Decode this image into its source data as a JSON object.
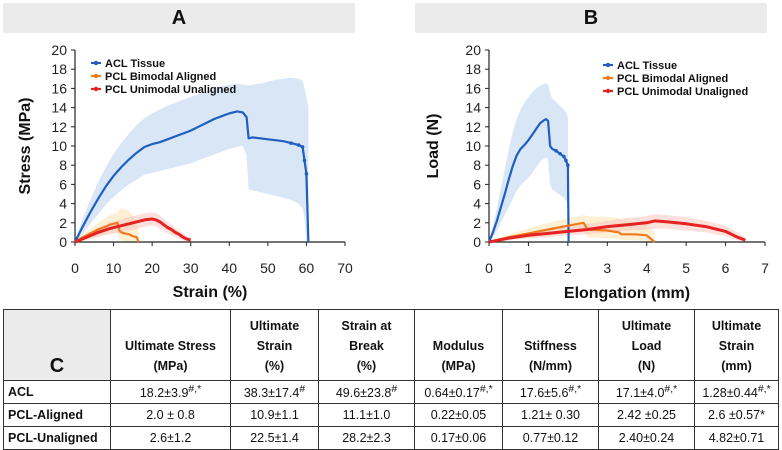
{
  "panels": {
    "a": "A",
    "b": "B",
    "c": "C"
  },
  "chart_data": [
    {
      "type": "line",
      "panel": "A",
      "xlabel": "Strain (%)",
      "ylabel": "Stress (MPa)",
      "xlim": [
        0,
        70
      ],
      "ylim": [
        0,
        20
      ],
      "xticks": [
        0,
        10,
        20,
        30,
        40,
        50,
        60,
        70
      ],
      "yticks": [
        0,
        2,
        4,
        6,
        8,
        10,
        12,
        14,
        16,
        18,
        20
      ],
      "legend": [
        "ACL Tissue",
        "PCL Bimodal Aligned",
        "PCL Unimodal Unaligned"
      ],
      "series": [
        {
          "name": "ACL Tissue",
          "color": "#1f5fbf",
          "band": "#b9d2ee",
          "x": [
            0,
            2,
            4,
            6,
            8,
            10,
            12,
            14,
            16,
            18,
            20,
            22,
            24,
            26,
            28,
            30,
            32,
            34,
            36,
            38,
            40,
            42,
            43.5,
            44.5,
            45,
            46,
            48,
            50,
            52,
            54,
            56,
            58,
            59,
            59.5,
            60,
            60.5
          ],
          "y": [
            0,
            1.6,
            3.1,
            4.5,
            5.8,
            6.9,
            7.8,
            8.6,
            9.3,
            9.9,
            10.2,
            10.4,
            10.7,
            11.0,
            11.3,
            11.6,
            12.0,
            12.4,
            12.8,
            13.1,
            13.4,
            13.6,
            13.5,
            13.0,
            10.8,
            10.9,
            10.8,
            10.7,
            10.6,
            10.5,
            10.3,
            10.1,
            9.9,
            8.5,
            7.1,
            0
          ],
          "upper": [
            0.3,
            2.4,
            4.4,
            6.2,
            7.8,
            9.2,
            10.3,
            11.3,
            12.2,
            12.9,
            13.4,
            13.8,
            14.2,
            14.5,
            14.8,
            15.1,
            15.4,
            15.7,
            16.0,
            16.2,
            16.4,
            16.5,
            16.4,
            16.3,
            16.3,
            16.4,
            16.5,
            16.7,
            16.9,
            17.0,
            17.1,
            17.0,
            16.8,
            16.0,
            15.0,
            14.0
          ],
          "lower": [
            0,
            0.8,
            1.9,
            2.9,
            3.9,
            4.7,
            5.4,
            6.0,
            6.5,
            7.0,
            7.2,
            7.4,
            7.6,
            7.8,
            8.0,
            8.2,
            8.5,
            8.8,
            9.1,
            9.4,
            9.7,
            9.9,
            10.0,
            9.0,
            5.5,
            5.4,
            5.2,
            5.0,
            4.8,
            4.6,
            4.4,
            4.0,
            3.5,
            2.5,
            0,
            0
          ]
        },
        {
          "name": "PCL Bimodal Aligned",
          "color": "#f07a1f",
          "band": "#fbe3b0",
          "x": [
            0,
            2,
            4,
            6,
            8,
            9,
            10,
            11,
            11.5,
            12,
            13,
            14,
            15,
            16,
            16.5
          ],
          "y": [
            0,
            0.5,
            0.9,
            1.3,
            1.6,
            1.8,
            1.9,
            2.0,
            1.2,
            1.0,
            0.9,
            0.8,
            0.6,
            0.5,
            0
          ],
          "upper": [
            0,
            0.8,
            1.4,
            2.0,
            2.5,
            2.8,
            3.0,
            3.1,
            3.3,
            3.5,
            3.4,
            3.2,
            2.8,
            2.0,
            1.0
          ],
          "lower": [
            0,
            0.2,
            0.4,
            0.6,
            0.8,
            0.9,
            0.9,
            1.0,
            0.3,
            0.2,
            0.1,
            0,
            0,
            0,
            0
          ]
        },
        {
          "name": "PCL Unimodal Unaligned",
          "color": "#e52323",
          "band": "#f7c6c0",
          "x": [
            0,
            3,
            6,
            9,
            12,
            15,
            18,
            20,
            21,
            22,
            23,
            24,
            25,
            26,
            27,
            28,
            29,
            30
          ],
          "y": [
            0,
            0.5,
            1.0,
            1.4,
            1.7,
            2.0,
            2.3,
            2.4,
            2.3,
            2.1,
            1.8,
            1.5,
            1.3,
            1.0,
            0.8,
            0.5,
            0.3,
            0.2
          ],
          "upper": [
            0,
            0.8,
            1.5,
            2.0,
            2.4,
            2.7,
            3.0,
            3.1,
            3.0,
            2.8,
            2.4,
            2.1,
            1.8,
            1.5,
            1.2,
            0.9,
            0.6,
            0.4
          ],
          "lower": [
            0,
            0.2,
            0.5,
            0.8,
            1.0,
            1.3,
            1.6,
            1.7,
            1.6,
            1.4,
            1.2,
            0.9,
            0.7,
            0.5,
            0.4,
            0.2,
            0.1,
            0
          ]
        }
      ]
    },
    {
      "type": "line",
      "panel": "B",
      "xlabel": "Elongation (mm)",
      "ylabel": "Load (N)",
      "xlim": [
        0,
        7
      ],
      "ylim": [
        0,
        20
      ],
      "xticks": [
        0,
        1,
        2,
        3,
        4,
        5,
        6,
        7
      ],
      "yticks": [
        0,
        2,
        4,
        6,
        8,
        10,
        12,
        14,
        16,
        18,
        20
      ],
      "legend": [
        "ACL Tissue",
        "PCL Bimodal Aligned",
        "PCL Unimodal Unaligned"
      ],
      "series": [
        {
          "name": "ACL Tissue",
          "color": "#1f5fbf",
          "band": "#b9d2ee",
          "x": [
            0,
            0.1,
            0.2,
            0.3,
            0.4,
            0.5,
            0.6,
            0.7,
            0.8,
            0.9,
            1.0,
            1.1,
            1.2,
            1.3,
            1.4,
            1.45,
            1.5,
            1.55,
            1.6,
            1.7,
            1.8,
            1.9,
            1.95,
            2.0,
            2.02
          ],
          "y": [
            0,
            1.0,
            2.2,
            3.6,
            5.0,
            6.5,
            7.9,
            9.0,
            9.7,
            10.1,
            10.6,
            11.2,
            11.8,
            12.4,
            12.7,
            12.8,
            12.6,
            10.0,
            9.7,
            9.5,
            9.2,
            8.9,
            8.5,
            8.0,
            0
          ],
          "upper": [
            0.3,
            1.6,
            3.5,
            5.6,
            7.6,
            9.6,
            11.4,
            12.8,
            13.8,
            14.5,
            15.1,
            15.6,
            16.0,
            16.3,
            16.5,
            16.5,
            16.4,
            15.5,
            15.0,
            14.6,
            14.2,
            13.8,
            13.5,
            13.0,
            0
          ],
          "lower": [
            0,
            0.5,
            1.2,
            2.0,
            2.8,
            3.6,
            4.5,
            5.3,
            5.9,
            6.3,
            6.7,
            7.2,
            7.8,
            8.4,
            8.7,
            8.8,
            8.6,
            6.0,
            5.5,
            5.2,
            4.9,
            4.6,
            4.3,
            4.0,
            0
          ]
        },
        {
          "name": "PCL Bimodal Aligned",
          "color": "#f07a1f",
          "band": "#fbe3b0",
          "x": [
            0,
            0.5,
            1.0,
            1.5,
            2.0,
            2.4,
            2.5,
            3.0,
            3.3,
            3.35,
            3.7,
            4.0,
            4.2
          ],
          "y": [
            0,
            0.5,
            0.9,
            1.3,
            1.7,
            2.0,
            1.3,
            1.2,
            1.0,
            0.8,
            0.8,
            0.7,
            0
          ],
          "upper": [
            0,
            0.8,
            1.4,
            2.0,
            2.5,
            2.8,
            2.7,
            2.6,
            2.5,
            2.3,
            2.1,
            1.8,
            1.0
          ],
          "lower": [
            0,
            0.2,
            0.4,
            0.6,
            0.9,
            1.1,
            0.5,
            0.4,
            0.3,
            0.2,
            0.2,
            0.1,
            0
          ]
        },
        {
          "name": "PCL Unimodal Unaligned",
          "color": "#e52323",
          "band": "#f7c6c0",
          "x": [
            0,
            0.5,
            1.0,
            1.5,
            2.0,
            2.5,
            3.0,
            3.5,
            4.0,
            4.2,
            4.5,
            5.0,
            5.5,
            6.0,
            6.3,
            6.5
          ],
          "y": [
            0,
            0.4,
            0.7,
            0.9,
            1.1,
            1.3,
            1.6,
            1.8,
            2.0,
            2.2,
            2.1,
            1.9,
            1.6,
            1.1,
            0.5,
            0.2
          ],
          "upper": [
            0,
            0.6,
            1.0,
            1.3,
            1.6,
            1.9,
            2.2,
            2.5,
            2.7,
            2.9,
            2.8,
            2.6,
            2.2,
            1.7,
            1.0,
            0.5
          ],
          "lower": [
            0,
            0.2,
            0.4,
            0.5,
            0.7,
            0.8,
            1.0,
            1.2,
            1.3,
            1.4,
            1.4,
            1.2,
            1.0,
            0.6,
            0.2,
            0
          ]
        }
      ]
    }
  ],
  "table": {
    "headers": [
      [
        "Ultimate Stress",
        "(MPa)"
      ],
      [
        "Ultimate",
        "Strain",
        "(%)"
      ],
      [
        "Strain at",
        "Break",
        "(%)"
      ],
      [
        "Modulus",
        "(MPa)"
      ],
      [
        "Stiffness",
        "(N/mm)"
      ],
      [
        "Ultimate",
        "Load",
        "(N)"
      ],
      [
        "Ultimate",
        "Strain",
        "(mm)"
      ]
    ],
    "rows": [
      {
        "name": "ACL",
        "cells": [
          {
            "v": "18.2±3.9",
            "s": "#,*"
          },
          {
            "v": "38.3±17.4",
            "s": "#"
          },
          {
            "v": "49.6±23.8",
            "s": "#"
          },
          {
            "v": "0.64±0.17",
            "s": "#,*"
          },
          {
            "v": "17.6±5.6",
            "s": "#,*"
          },
          {
            "v": "17.1±4.0",
            "s": "#,*"
          },
          {
            "v": "1.28±0.44",
            "s": "#,*"
          }
        ]
      },
      {
        "name": "PCL-Aligned",
        "cells": [
          {
            "v": "2.0 ± 0.8",
            "s": ""
          },
          {
            "v": "10.9±1.1",
            "s": ""
          },
          {
            "v": "11.1±1.0",
            "s": ""
          },
          {
            "v": "0.22±0.05",
            "s": ""
          },
          {
            "v": "1.21± 0.30",
            "s": ""
          },
          {
            "v": "2.42 ±0.25",
            "s": ""
          },
          {
            "v": "2.6 ±0.57*",
            "s": ""
          }
        ]
      },
      {
        "name": "PCL-Unaligned",
        "cells": [
          {
            "v": "2.6±1.2",
            "s": ""
          },
          {
            "v": "22.5±1.4",
            "s": ""
          },
          {
            "v": "28.2±2.3",
            "s": ""
          },
          {
            "v": "0.17±0.06",
            "s": ""
          },
          {
            "v": "0.77±0.12",
            "s": ""
          },
          {
            "v": "2.40±0.24",
            "s": ""
          },
          {
            "v": "4.82±0.71",
            "s": ""
          }
        ]
      }
    ]
  }
}
